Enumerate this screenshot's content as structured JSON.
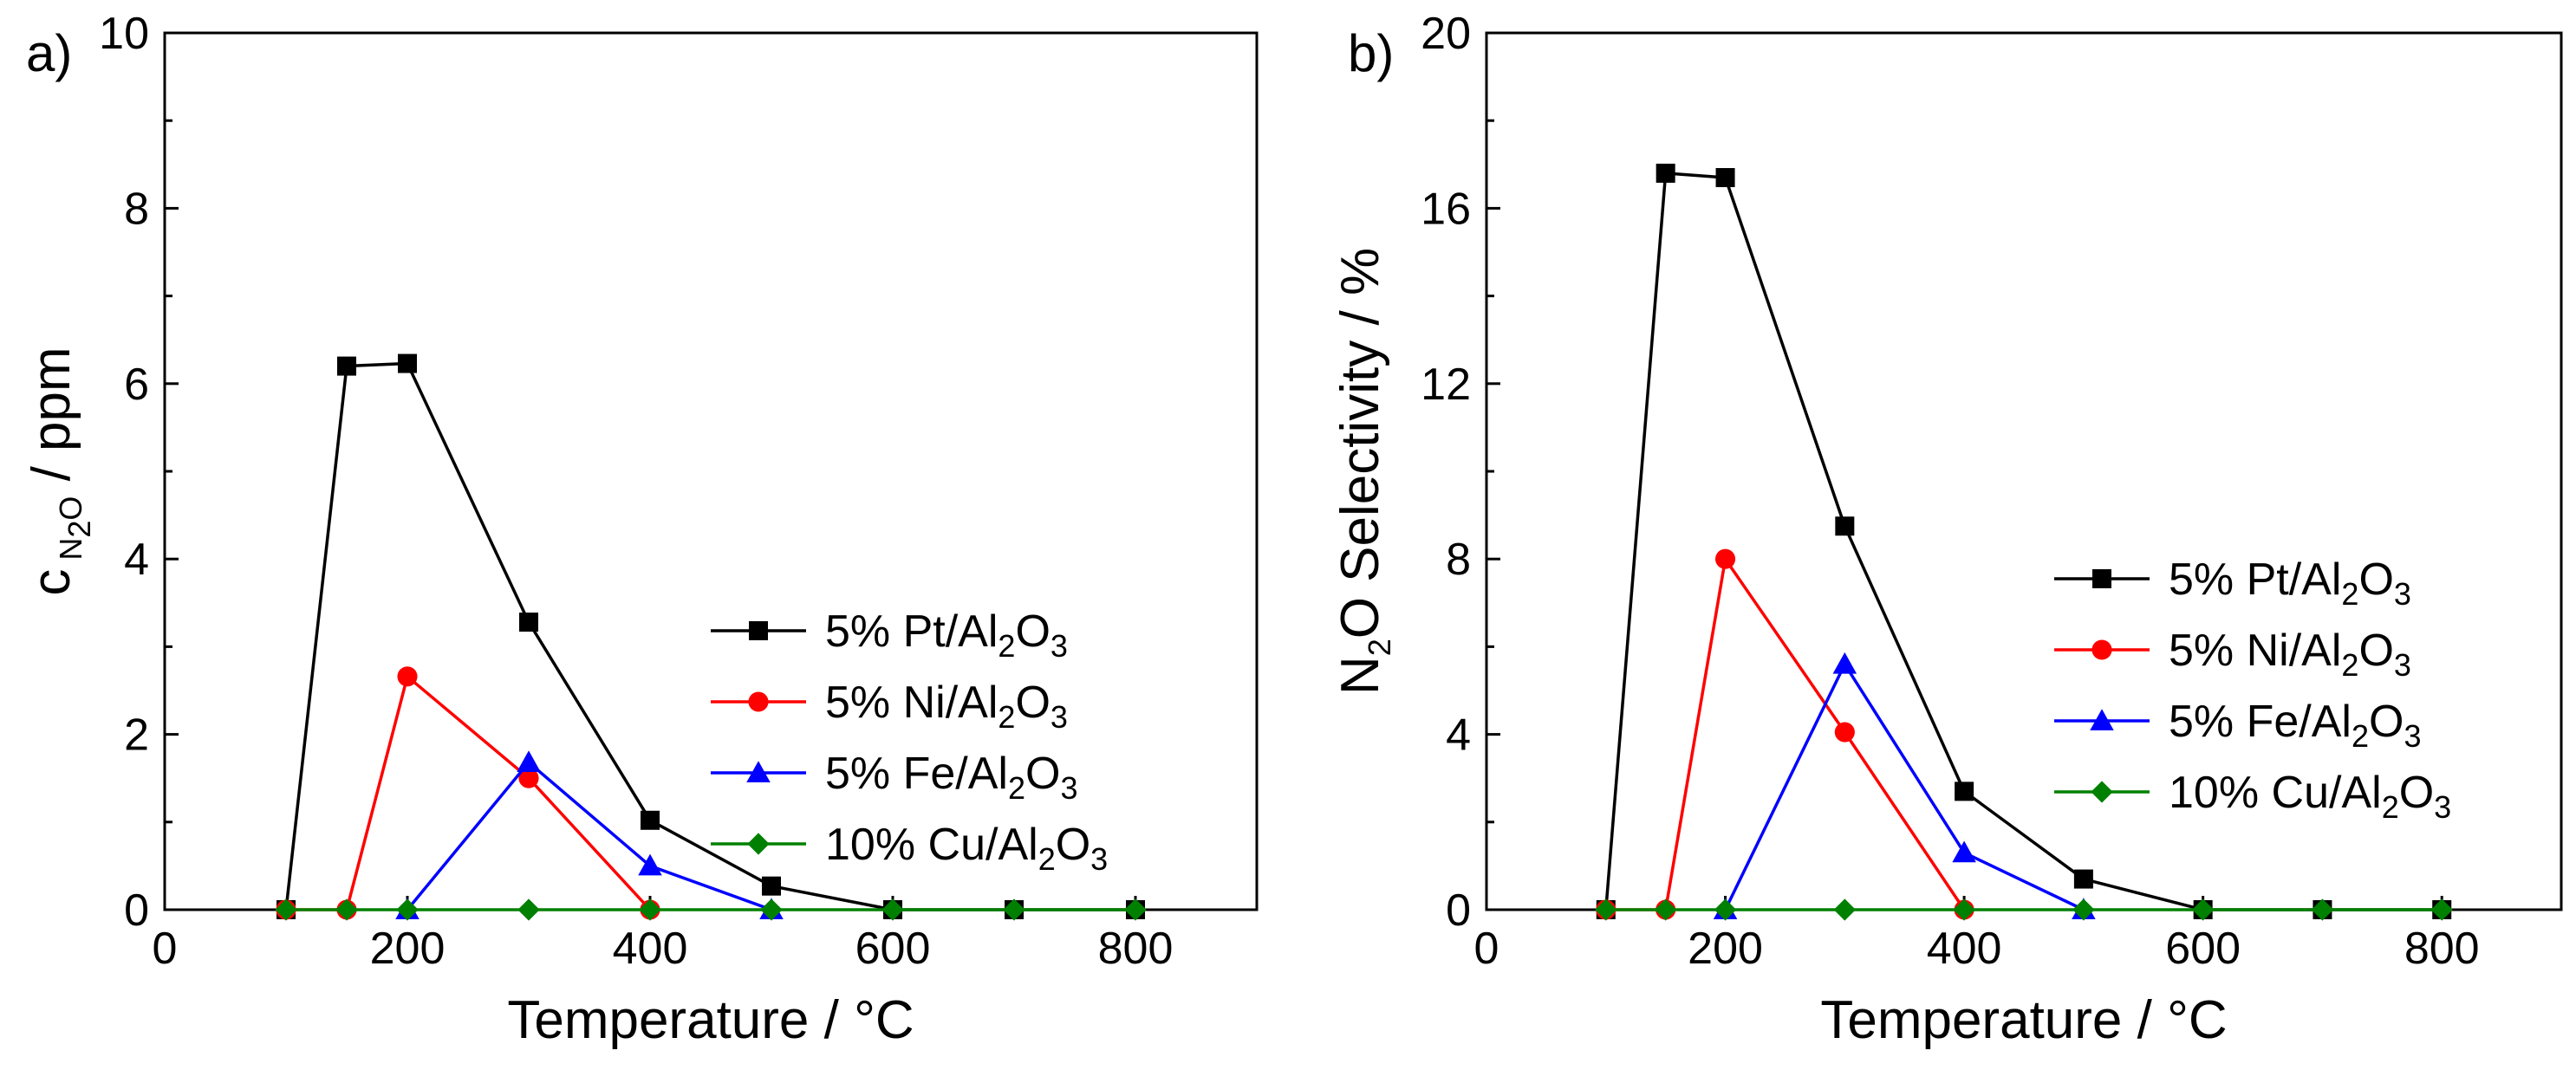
{
  "chart_data": [
    {
      "type": "line",
      "panel_label": "a)",
      "title": "",
      "xlabel": "Temperature / °C",
      "ylabel": {
        "main": "c",
        "sub": "N",
        "sub2": "O",
        "sub_index": "2",
        "rest": " / ppm"
      },
      "xlim": [
        0,
        900
      ],
      "ylim": [
        0,
        10
      ],
      "xticks": [
        0,
        200,
        400,
        600,
        800
      ],
      "xtick_labels": [
        "0",
        "200",
        "400",
        "600",
        "800"
      ],
      "yticks": [
        0,
        2,
        4,
        6,
        8,
        10
      ],
      "ytick_labels": [
        "0",
        "2",
        "4",
        "6",
        "8",
        "10"
      ],
      "legend_position": "right-middle",
      "series": [
        {
          "name": "5% Pt/Al2O3",
          "label_parts": [
            "5% Pt/Al",
            "2",
            "O",
            "3"
          ],
          "color": "#000000",
          "marker": "square",
          "x": [
            100,
            150,
            200,
            300,
            400,
            500,
            600,
            700,
            800
          ],
          "y": [
            0,
            6.2,
            6.23,
            3.28,
            1.02,
            0.27,
            0,
            0,
            0
          ]
        },
        {
          "name": "5% Ni/Al2O3",
          "label_parts": [
            "5% Ni/Al",
            "2",
            "O",
            "3"
          ],
          "color": "#ff0000",
          "marker": "circle",
          "x": [
            100,
            150,
            200,
            300,
            400
          ],
          "y": [
            0,
            0,
            2.66,
            1.5,
            0
          ]
        },
        {
          "name": "5% Fe/Al2O3",
          "label_parts": [
            "5% Fe/Al",
            "2",
            "O",
            "3"
          ],
          "color": "#0000ff",
          "marker": "triangle",
          "x": [
            200,
            300,
            400,
            500
          ],
          "y": [
            0,
            1.68,
            0.5,
            0
          ]
        },
        {
          "name": "10% Cu/Al2O3",
          "label_parts": [
            "10% Cu/Al",
            "2",
            "O",
            "3"
          ],
          "color": "#008000",
          "marker": "diamond",
          "x": [
            100,
            150,
            200,
            300,
            400,
            500,
            600,
            700,
            800
          ],
          "y": [
            0,
            0,
            0,
            0,
            0,
            0,
            0,
            0,
            0
          ]
        }
      ]
    },
    {
      "type": "line",
      "panel_label": "b)",
      "title": "",
      "xlabel": "Temperature / °C",
      "ylabel": {
        "main": "N",
        "sub": "2",
        "rest": "O Selectivity / %"
      },
      "xlim": [
        0,
        900
      ],
      "ylim": [
        0,
        20
      ],
      "xticks": [
        0,
        200,
        400,
        600,
        800
      ],
      "xtick_labels": [
        "0",
        "200",
        "400",
        "600",
        "800"
      ],
      "yticks": [
        0,
        4,
        8,
        12,
        16,
        20
      ],
      "ytick_labels": [
        "0",
        "4",
        "8",
        "12",
        "16",
        "20"
      ],
      "legend_position": "right-middle",
      "series": [
        {
          "name": "5% Pt/Al2O3",
          "label_parts": [
            "5% Pt/Al",
            "2",
            "O",
            "3"
          ],
          "color": "#000000",
          "marker": "square",
          "x": [
            100,
            150,
            200,
            300,
            400,
            500,
            600,
            700,
            800
          ],
          "y": [
            0,
            16.8,
            16.7,
            8.75,
            2.7,
            0.7,
            0,
            0,
            0
          ]
        },
        {
          "name": "5% Ni/Al2O3",
          "label_parts": [
            "5% Ni/Al",
            "2",
            "O",
            "3"
          ],
          "color": "#ff0000",
          "marker": "circle",
          "x": [
            100,
            150,
            200,
            300,
            400
          ],
          "y": [
            0,
            0,
            8.0,
            4.05,
            0
          ]
        },
        {
          "name": "5% Fe/Al2O3",
          "label_parts": [
            "5% Fe/Al",
            "2",
            "O",
            "3"
          ],
          "color": "#0000ff",
          "marker": "triangle",
          "x": [
            200,
            300,
            400,
            500
          ],
          "y": [
            0,
            5.6,
            1.3,
            0
          ]
        },
        {
          "name": "10% Cu/Al2O3",
          "label_parts": [
            "10% Cu/Al",
            "2",
            "O",
            "3"
          ],
          "color": "#008000",
          "marker": "diamond",
          "x": [
            100,
            150,
            200,
            300,
            400,
            500,
            600,
            700,
            800
          ],
          "y": [
            0,
            0,
            0,
            0,
            0,
            0,
            0,
            0,
            0
          ]
        }
      ]
    }
  ]
}
